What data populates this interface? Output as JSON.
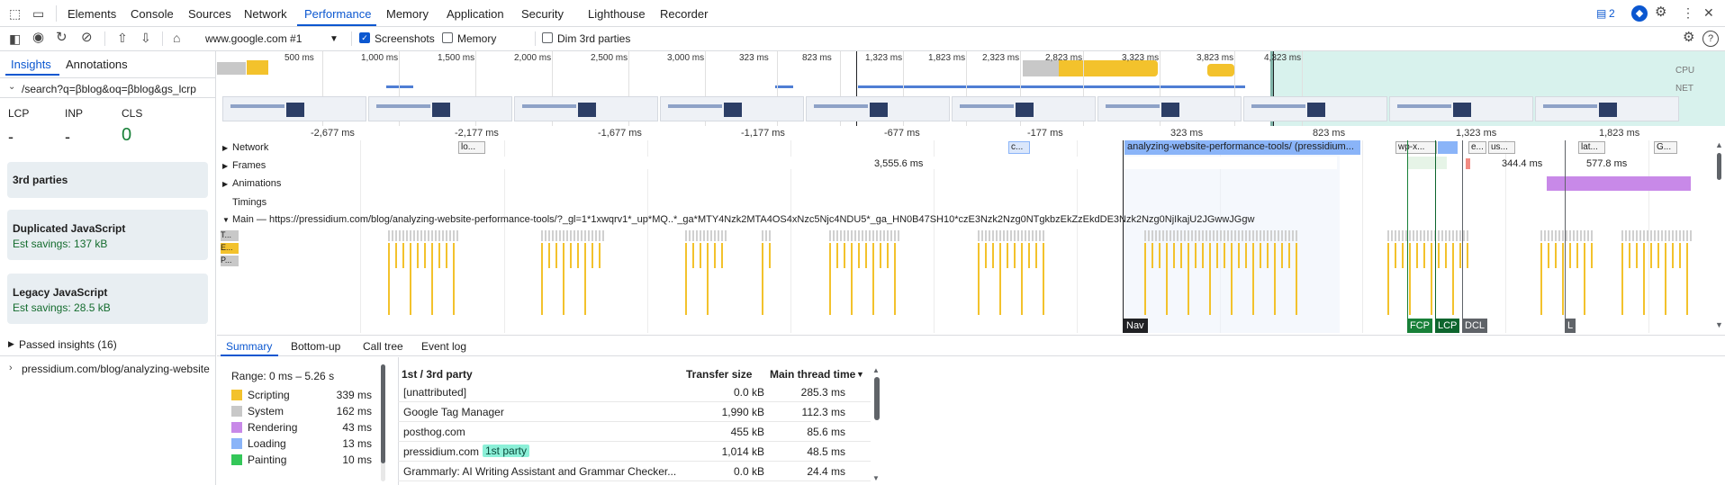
{
  "tabs": {
    "elements": "Elements",
    "console": "Console",
    "sources": "Sources",
    "network": "Network",
    "performance": "Performance",
    "memory": "Memory",
    "application": "Application",
    "security": "Security",
    "lighthouse": "Lighthouse",
    "recorder": "Recorder",
    "issues_count": "2"
  },
  "toolbar": {
    "target": "www.google.com #1",
    "screenshots": "Screenshots",
    "memory": "Memory",
    "dim_third": "Dim 3rd parties"
  },
  "sidebar": {
    "tab_insights": "Insights",
    "tab_annotations": "Annotations",
    "nav_url": "/search?q=βblog&oq=βblog&gs_lcrp",
    "metrics": {
      "lcp_label": "LCP",
      "inp_label": "INP",
      "cls_label": "CLS",
      "lcp": "-",
      "inp": "-",
      "cls": "0"
    },
    "third_parties": "3rd parties",
    "dup_js": "Duplicated JavaScript",
    "dup_js_savings": "Est savings: 137 kB",
    "legacy_js": "Legacy JavaScript",
    "legacy_js_savings": "Est savings: 28.5 kB",
    "passed": "Passed insights (16)",
    "page_url": "pressidium.com/blog/analyzing-website"
  },
  "overview": {
    "labels": [
      "500 ms",
      "1,000 ms",
      "1,500 ms",
      "2,000 ms",
      "2,500 ms",
      "3,000 ms",
      "323 ms",
      "823 ms",
      "1,323 ms",
      "1,823 ms",
      "2,323 ms",
      "2,823 ms",
      "3,323 ms",
      "3,823 ms",
      "4,323 ms"
    ],
    "cpu": "CPU",
    "net": "NET"
  },
  "ruler": {
    "labels": [
      "-2,677 ms",
      "-2,177 ms",
      "-1,677 ms",
      "-1,177 ms",
      "-677 ms",
      "-177 ms",
      "323 ms",
      "823 ms",
      "1,323 ms",
      "1,823 ms"
    ]
  },
  "tracks": {
    "network": "Network",
    "frames": "Frames",
    "animations": "Animations",
    "timings": "Timings",
    "main": "Main — https://pressidium.com/blog/analyzing-website-performance-tools/?_gl=1*1xwqrv1*_up*MQ..*_ga*MTY4Nzk2MTA4OS4xNzc5Njc4NDU5*_ga_HN0B47SH10*czE3Nzk2Nzg0NTgkbzEkZzEkdDE3Nzk2Nzg0NjIkajU2JGwwJGgw",
    "net_req_1": "lo...",
    "net_req_2": "c...",
    "net_req_main": "analyzing-website-performance-tools/ (pressidium...",
    "net_req_wp": "wp-x...",
    "net_req_e": "e...",
    "net_req_us": "us...",
    "net_req_lat": "lat...",
    "net_req_g": "G...",
    "frame_1": "3,555.6 ms",
    "frame_2": "344.4 ms",
    "frame_3": "577.8 ms",
    "row_t": "T...",
    "row_e": "E...",
    "row_p": "P...",
    "marker_nav": "Nav",
    "marker_fcp": "FCP",
    "marker_lcp": "LCP",
    "marker_dcl": "DCL",
    "marker_l": "L"
  },
  "bottom": {
    "tab_summary": "Summary",
    "tab_bottomup": "Bottom-up",
    "tab_calltree": "Call tree",
    "tab_eventlog": "Event log",
    "range": "Range: 0 ms – 5.26 s",
    "legend": [
      {
        "label": "Scripting",
        "value": "339 ms",
        "color": "#f3c22c"
      },
      {
        "label": "System",
        "value": "162 ms",
        "color": "#c8c8c8"
      },
      {
        "label": "Rendering",
        "value": "43 ms",
        "color": "#c889e8"
      },
      {
        "label": "Loading",
        "value": "13 ms",
        "color": "#8ab4f8"
      },
      {
        "label": "Painting",
        "value": "10 ms",
        "color": "#34c759"
      }
    ],
    "table_headers": {
      "party": "1st / 3rd party",
      "transfer": "Transfer size",
      "main": "Main thread time"
    },
    "rows": [
      {
        "name": "[unattributed]",
        "transfer": "0.0 kB",
        "main": "285.3 ms",
        "badge": ""
      },
      {
        "name": "Google Tag Manager",
        "transfer": "1,990 kB",
        "main": "112.3 ms",
        "badge": ""
      },
      {
        "name": "posthog.com",
        "transfer": "455 kB",
        "main": "85.6 ms",
        "badge": ""
      },
      {
        "name": "pressidium.com",
        "transfer": "1,014 kB",
        "main": "48.5 ms",
        "badge": "1st party"
      },
      {
        "name": "Grammarly: AI Writing Assistant and Grammar Checker...",
        "transfer": "0.0 kB",
        "main": "24.4 ms",
        "badge": ""
      }
    ]
  },
  "colors": {
    "accent": "#0b57d0",
    "scripting": "#f3c22c",
    "system": "#c8c8c8",
    "rendering": "#c889e8",
    "loading": "#8ab4f8",
    "painting": "#34c759",
    "selection": "#c8ece6"
  }
}
